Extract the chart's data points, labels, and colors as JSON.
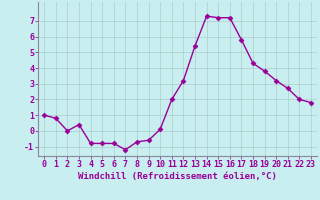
{
  "x": [
    0,
    1,
    2,
    3,
    4,
    5,
    6,
    7,
    8,
    9,
    10,
    11,
    12,
    13,
    14,
    15,
    16,
    17,
    18,
    19,
    20,
    21,
    22,
    23
  ],
  "y": [
    1.0,
    0.8,
    0.0,
    0.4,
    -0.8,
    -0.8,
    -0.8,
    -1.2,
    -0.7,
    -0.6,
    0.1,
    2.0,
    3.2,
    5.4,
    7.3,
    7.2,
    7.2,
    5.8,
    4.3,
    3.8,
    3.2,
    2.7,
    2.0,
    1.8
  ],
  "line_color": "#990099",
  "marker": "D",
  "marker_size": 2.5,
  "bg_color": "#c8eef0",
  "grid_color": "#aacccc",
  "xlabel": "Windchill (Refroidissement éolien,°C)",
  "xlim": [
    -0.5,
    23.5
  ],
  "ylim": [
    -1.6,
    8.2
  ],
  "yticks": [
    -1,
    0,
    1,
    2,
    3,
    4,
    5,
    6,
    7
  ],
  "xticks": [
    0,
    1,
    2,
    3,
    4,
    5,
    6,
    7,
    8,
    9,
    10,
    11,
    12,
    13,
    14,
    15,
    16,
    17,
    18,
    19,
    20,
    21,
    22,
    23
  ],
  "tick_color": "#990099",
  "label_color": "#990099",
  "axis_color": "#888899",
  "tick_fontsize": 6.0,
  "xlabel_fontsize": 6.5,
  "line_width": 1.0
}
